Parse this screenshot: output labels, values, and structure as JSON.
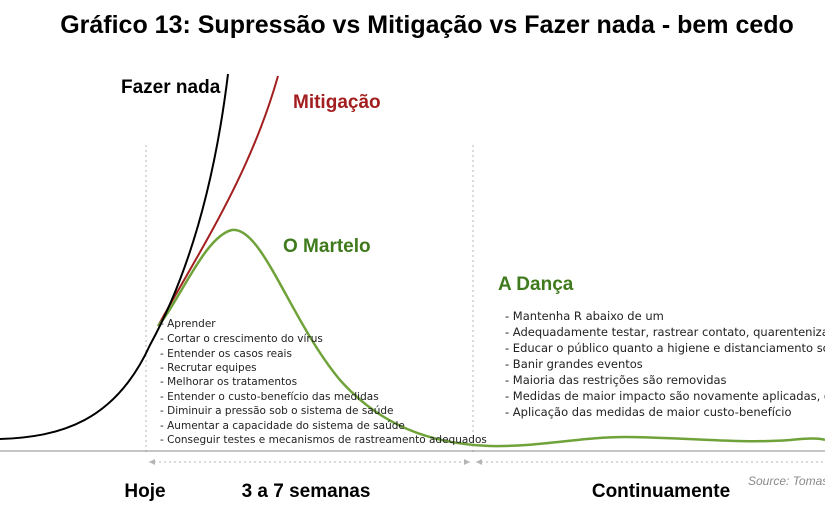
{
  "chart_data": {
    "type": "line",
    "title": "Gráfico 13: Supressão vs Mitigação vs Fazer nada - bem cedo",
    "series": [
      {
        "name": "Fazer nada",
        "color": "#000000"
      },
      {
        "name": "Mitigação",
        "color": "#a31f1f"
      },
      {
        "name": "O Martelo",
        "color": "#6fa33a"
      }
    ],
    "phases": [
      {
        "name": "A Dança",
        "color": "#3f7a1c"
      }
    ],
    "annotations": {
      "martelo_items": [
        "- Aprender",
        "- Cortar o crescimento do vírus",
        "- Entender os casos reais",
        "- Recrutar equipes",
        "- Melhorar os tratamentos",
        "- Entender o custo-benefício das medidas",
        "- Diminuir a pressão sob o sistema de saúde",
        "- Aumentar a capacidade do sistema de saúde",
        "- Conseguir testes e mecanismos de rastreamento adequados"
      ],
      "danca_items": [
        "- Mantenha R abaixo de um",
        "- Adequadamente testar, rastrear contato, quarentenizar, isolar",
        "- Educar o público quanto a higiene e distanciamento social",
        "- Banir grandes eventos",
        "- Maioria das restrições são removidas",
        "- Medidas de maior impacto são novamente aplicadas, quando necessário",
        "- Aplicação das medidas de maior custo-benefício"
      ]
    },
    "x_labels": [
      "Hoje",
      "3 a 7 semanas",
      "Continuamente"
    ],
    "source": "Source: Tomas Pueyo",
    "axes": {
      "ticks": false,
      "grid": false
    }
  }
}
